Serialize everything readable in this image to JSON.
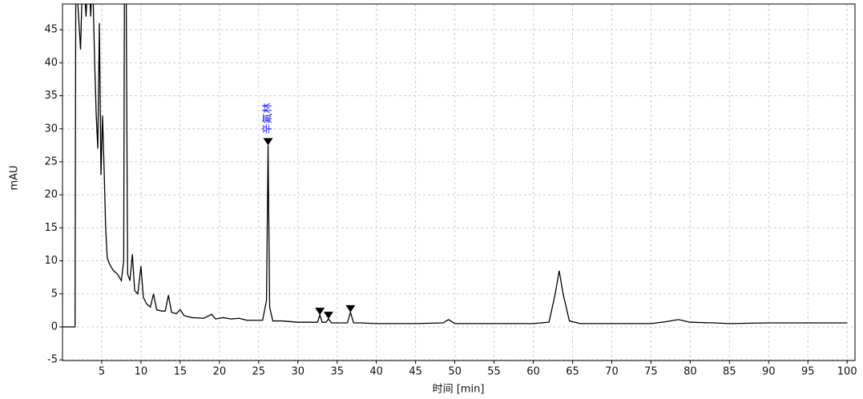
{
  "chart_data": {
    "type": "line",
    "y_label": "mAU",
    "x_label": "时间 [min]",
    "color": "#000000",
    "grid": true,
    "xlim": [
      0,
      101
    ],
    "ylim": [
      -5.1,
      48.9
    ],
    "xticks": [
      5,
      10,
      15,
      20,
      25,
      30,
      35,
      40,
      45,
      50,
      55,
      60,
      65,
      70,
      75,
      80,
      85,
      90,
      95,
      100
    ],
    "yticks": [
      -5,
      0,
      5,
      10,
      15,
      20,
      25,
      30,
      35,
      40,
      45
    ],
    "x": [
      0,
      1.6,
      1.7,
      2.0,
      2.3,
      2.6,
      3.0,
      3.3,
      3.6,
      3.8,
      4.1,
      4.3,
      4.5,
      4.7,
      4.9,
      5.1,
      5.3,
      5.5,
      5.7,
      6.0,
      6.5,
      7.0,
      7.5,
      7.8,
      7.9,
      8.1,
      8.3,
      8.6,
      8.9,
      9.2,
      9.6,
      10.0,
      10.3,
      10.7,
      11.2,
      11.6,
      12.0,
      12.6,
      13.1,
      13.5,
      13.9,
      14.5,
      15.0,
      15.5,
      16.5,
      18,
      19,
      19.5,
      20.5,
      21.5,
      22.5,
      23.5,
      24.5,
      25.5,
      26.0,
      26.2,
      26.4,
      26.8,
      28,
      30,
      32.5,
      32.8,
      33.1,
      33.6,
      33.9,
      34.3,
      35,
      36.3,
      36.7,
      37.1,
      38,
      40,
      45,
      48.5,
      49.2,
      50,
      55,
      60,
      62,
      62.8,
      63.3,
      63.8,
      64.6,
      66,
      70,
      75,
      77,
      78.5,
      80,
      83,
      85,
      90,
      95,
      100
    ],
    "values": [
      0,
      0,
      55,
      48,
      42,
      55,
      47,
      55,
      47,
      55,
      40,
      32,
      27,
      46,
      23,
      32,
      24,
      15,
      10.5,
      9.5,
      8.5,
      8,
      7,
      10,
      55,
      55,
      8,
      7,
      11,
      5.5,
      5,
      9.2,
      4.5,
      3.5,
      3,
      5,
      2.6,
      2.4,
      2.4,
      4.8,
      2.2,
      2.0,
      2.6,
      1.7,
      1.4,
      1.3,
      1.9,
      1.2,
      1.4,
      1.2,
      1.3,
      1.0,
      1.0,
      1.0,
      4,
      27.5,
      3,
      0.9,
      0.9,
      0.7,
      0.7,
      1.8,
      0.7,
      0.7,
      1.2,
      0.6,
      0.6,
      0.6,
      2.2,
      0.6,
      0.6,
      0.5,
      0.5,
      0.6,
      1.1,
      0.5,
      0.5,
      0.5,
      0.7,
      5,
      8.5,
      5,
      0.9,
      0.5,
      0.5,
      0.5,
      0.8,
      1.1,
      0.7,
      0.6,
      0.5,
      0.6,
      0.6,
      0.6
    ],
    "peaks": {
      "x": [
        26.2,
        32.8,
        33.9,
        36.7
      ],
      "values": [
        27.5,
        1.8,
        1.2,
        2.2
      ]
    },
    "annotations": [
      {
        "text": "辛氟林",
        "x": 26.2,
        "y": 27.5,
        "color": "#1a1aff"
      }
    ]
  }
}
